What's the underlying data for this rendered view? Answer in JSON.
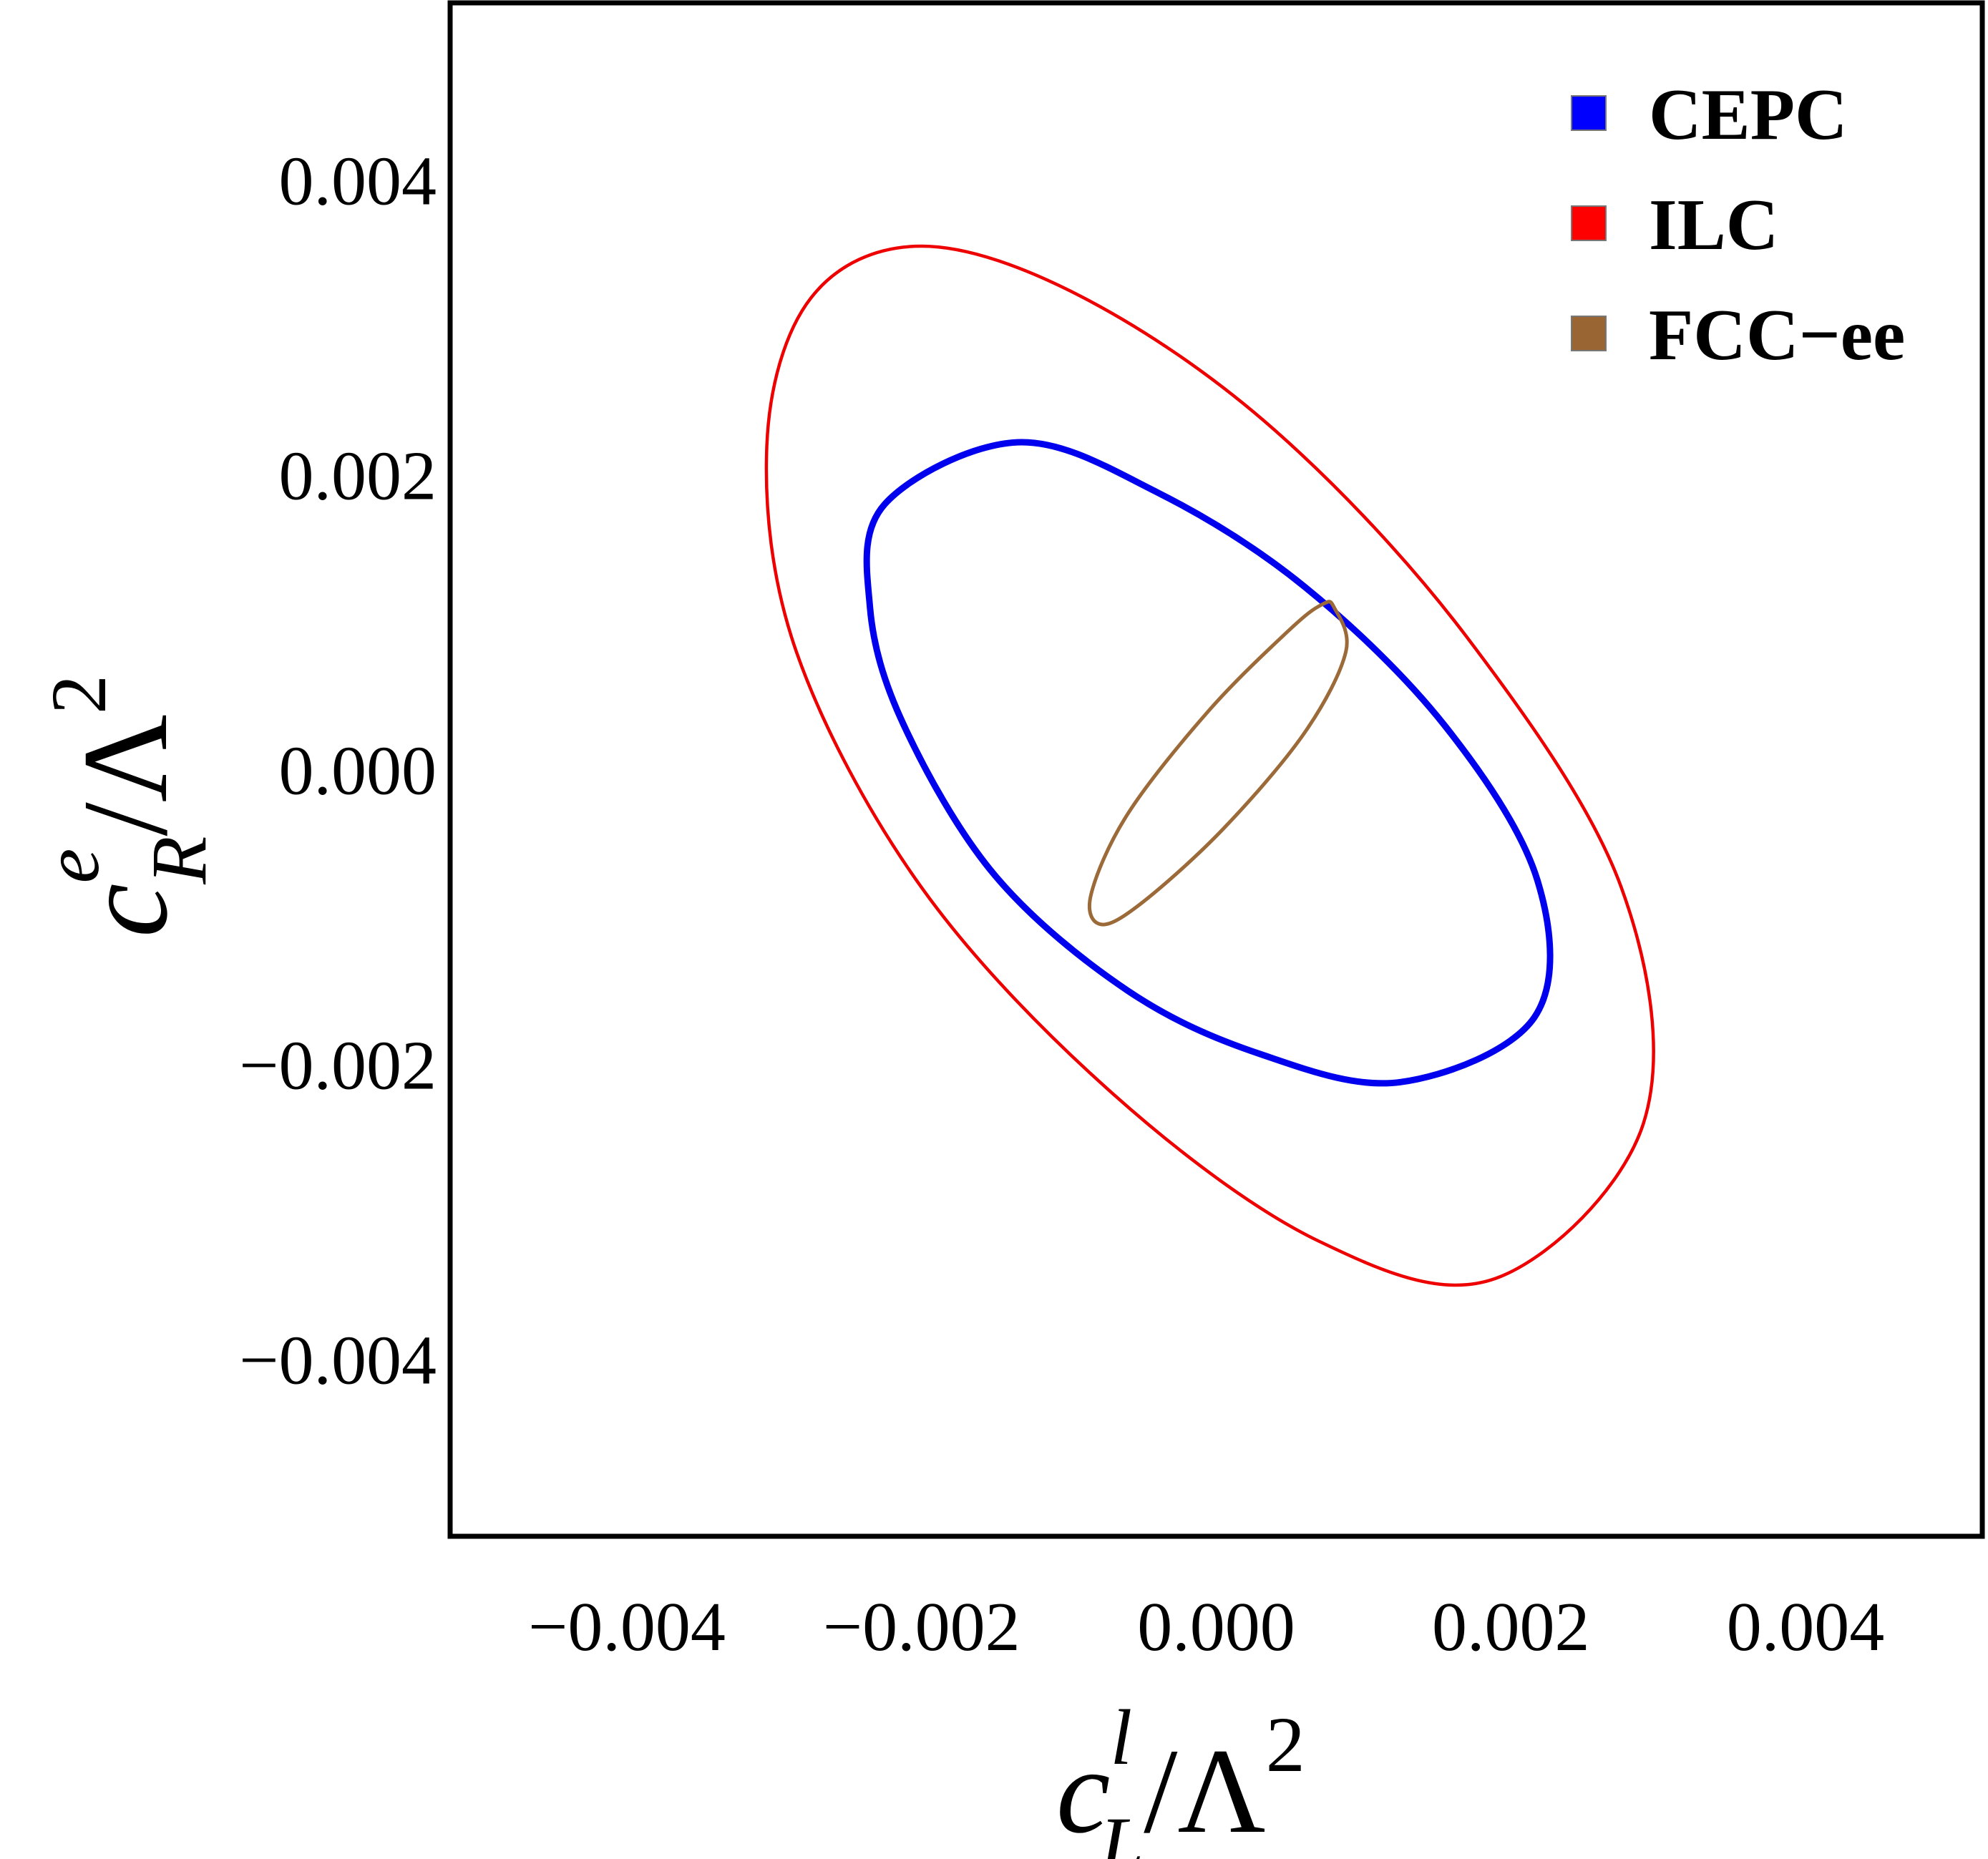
{
  "chart_data": {
    "type": "contour",
    "title": "",
    "xlabel": {
      "base": "c",
      "sup": "l",
      "sub": "L",
      "rest": "/Λ",
      "pow": "2"
    },
    "ylabel": {
      "base": "c",
      "sup": "e",
      "sub": "R",
      "rest": "/Λ",
      "pow": "2"
    },
    "xlim": [
      -0.0052,
      0.0052
    ],
    "ylim": [
      -0.0052,
      0.0052
    ],
    "xticks": [
      {
        "value": -0.004,
        "label": "−0.004"
      },
      {
        "value": -0.002,
        "label": "−0.002"
      },
      {
        "value": 0.0,
        "label": "0.000"
      },
      {
        "value": 0.002,
        "label": "0.002"
      },
      {
        "value": 0.004,
        "label": "0.004"
      }
    ],
    "yticks": [
      {
        "value": 0.004,
        "label": "0.004"
      },
      {
        "value": 0.002,
        "label": "0.002"
      },
      {
        "value": 0.0,
        "label": "0.000"
      },
      {
        "value": -0.002,
        "label": "−0.002"
      },
      {
        "value": -0.004,
        "label": "−0.004"
      }
    ],
    "grid": false,
    "legend_position": "top-right",
    "series": [
      {
        "name": "CEPC",
        "color": "#0000ee",
        "legend_color": "#0000ff",
        "line_width": "thick",
        "points": [
          [
            -0.00135,
            0.00222
          ],
          [
            -0.0004,
            0.00188
          ],
          [
            0.0006,
            0.00124
          ],
          [
            0.00155,
            0.0003
          ],
          [
            0.00218,
            -0.00075
          ],
          [
            0.00216,
            -0.00168
          ],
          [
            0.00125,
            -0.00212
          ],
          [
            0.0003,
            -0.00193
          ],
          [
            -0.0006,
            -0.0015
          ],
          [
            -0.0015,
            -0.00072
          ],
          [
            -0.00212,
            0.0003
          ],
          [
            -0.00235,
            0.0011
          ],
          [
            -0.00225,
            0.0018
          ]
        ]
      },
      {
        "name": "ILC",
        "color": "#ee0000",
        "legend_color": "#ff0000",
        "line_width": "thin",
        "points": [
          [
            -0.002,
            0.00355
          ],
          [
            -0.0009,
            0.0032
          ],
          [
            0.0004,
            0.0023
          ],
          [
            0.0017,
            0.0009
          ],
          [
            0.00275,
            -0.0008
          ],
          [
            0.0029,
            -0.0024
          ],
          [
            0.0019,
            -0.00345
          ],
          [
            0.0007,
            -0.0032
          ],
          [
            -0.0007,
            -0.0022
          ],
          [
            -0.002,
            -0.0008
          ],
          [
            -0.00285,
            0.0008
          ],
          [
            -0.00305,
            0.0022
          ],
          [
            -0.00275,
            0.0032
          ]
        ]
      },
      {
        "name": "FCC−ee",
        "color": "#9b6a38",
        "legend_color": "#996633",
        "line_width": "medium",
        "points": [
          [
            0.0008,
            0.0011
          ],
          [
            0.00088,
            0.0008
          ],
          [
            0.0006,
            0.00025
          ],
          [
            5e-05,
            -0.0004
          ],
          [
            -0.0005,
            -0.0009
          ],
          [
            -0.00078,
            -0.00105
          ],
          [
            -0.00085,
            -0.00085
          ],
          [
            -0.0006,
            -0.0003
          ],
          [
            -5e-05,
            0.0004
          ],
          [
            0.0005,
            0.00095
          ],
          [
            0.00072,
            0.00112
          ]
        ]
      }
    ]
  }
}
